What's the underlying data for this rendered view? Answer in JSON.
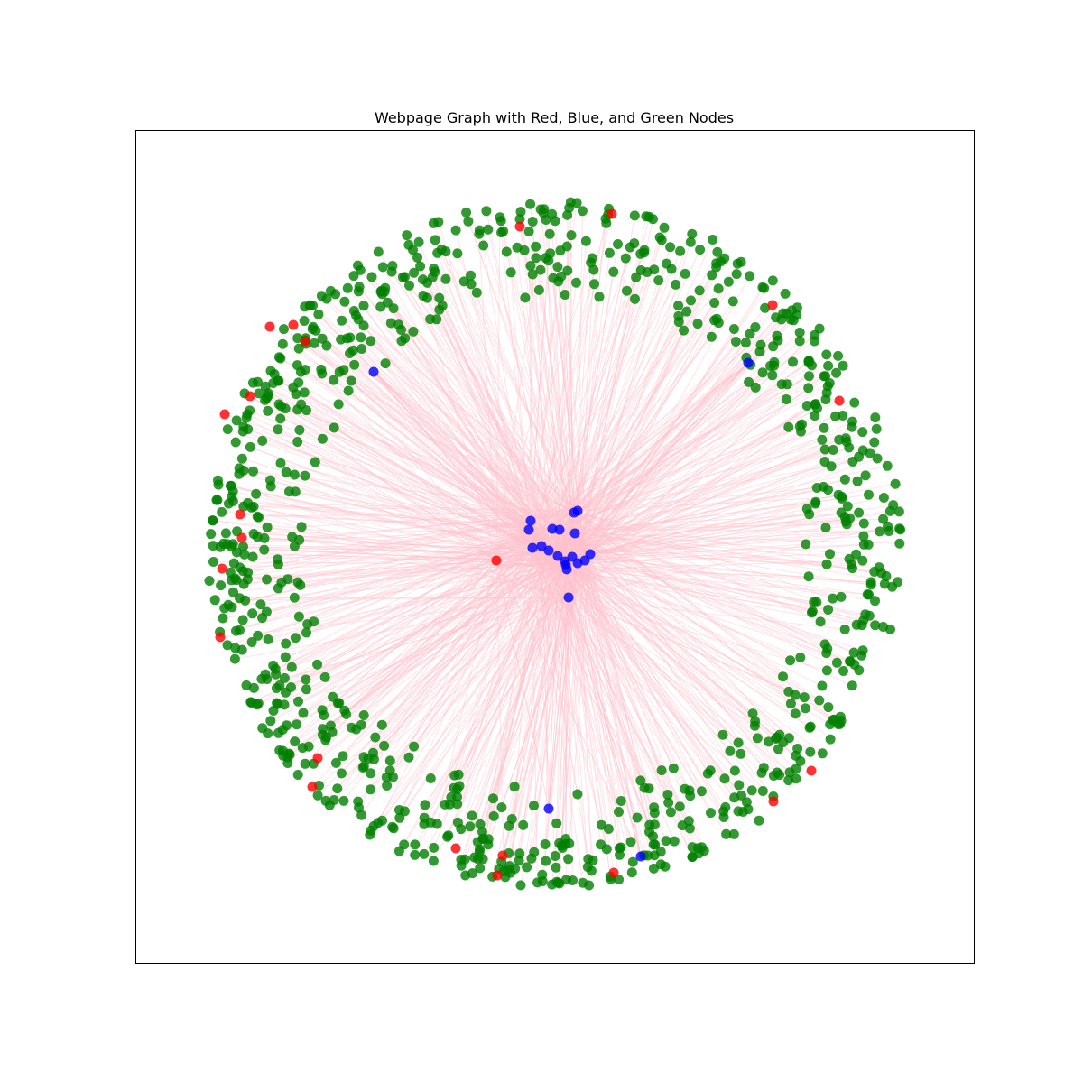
{
  "chart_data": {
    "type": "network",
    "title": "Webpage Graph with Red, Blue, and Green Nodes",
    "node_colors": {
      "red": "#ff0000",
      "blue": "#0000ff",
      "green": "#008000"
    },
    "edge_color": "#ffc0cb",
    "axes_visible": false,
    "approx_node_counts": {
      "green": 900,
      "red": 25,
      "blue": 24
    }
  }
}
